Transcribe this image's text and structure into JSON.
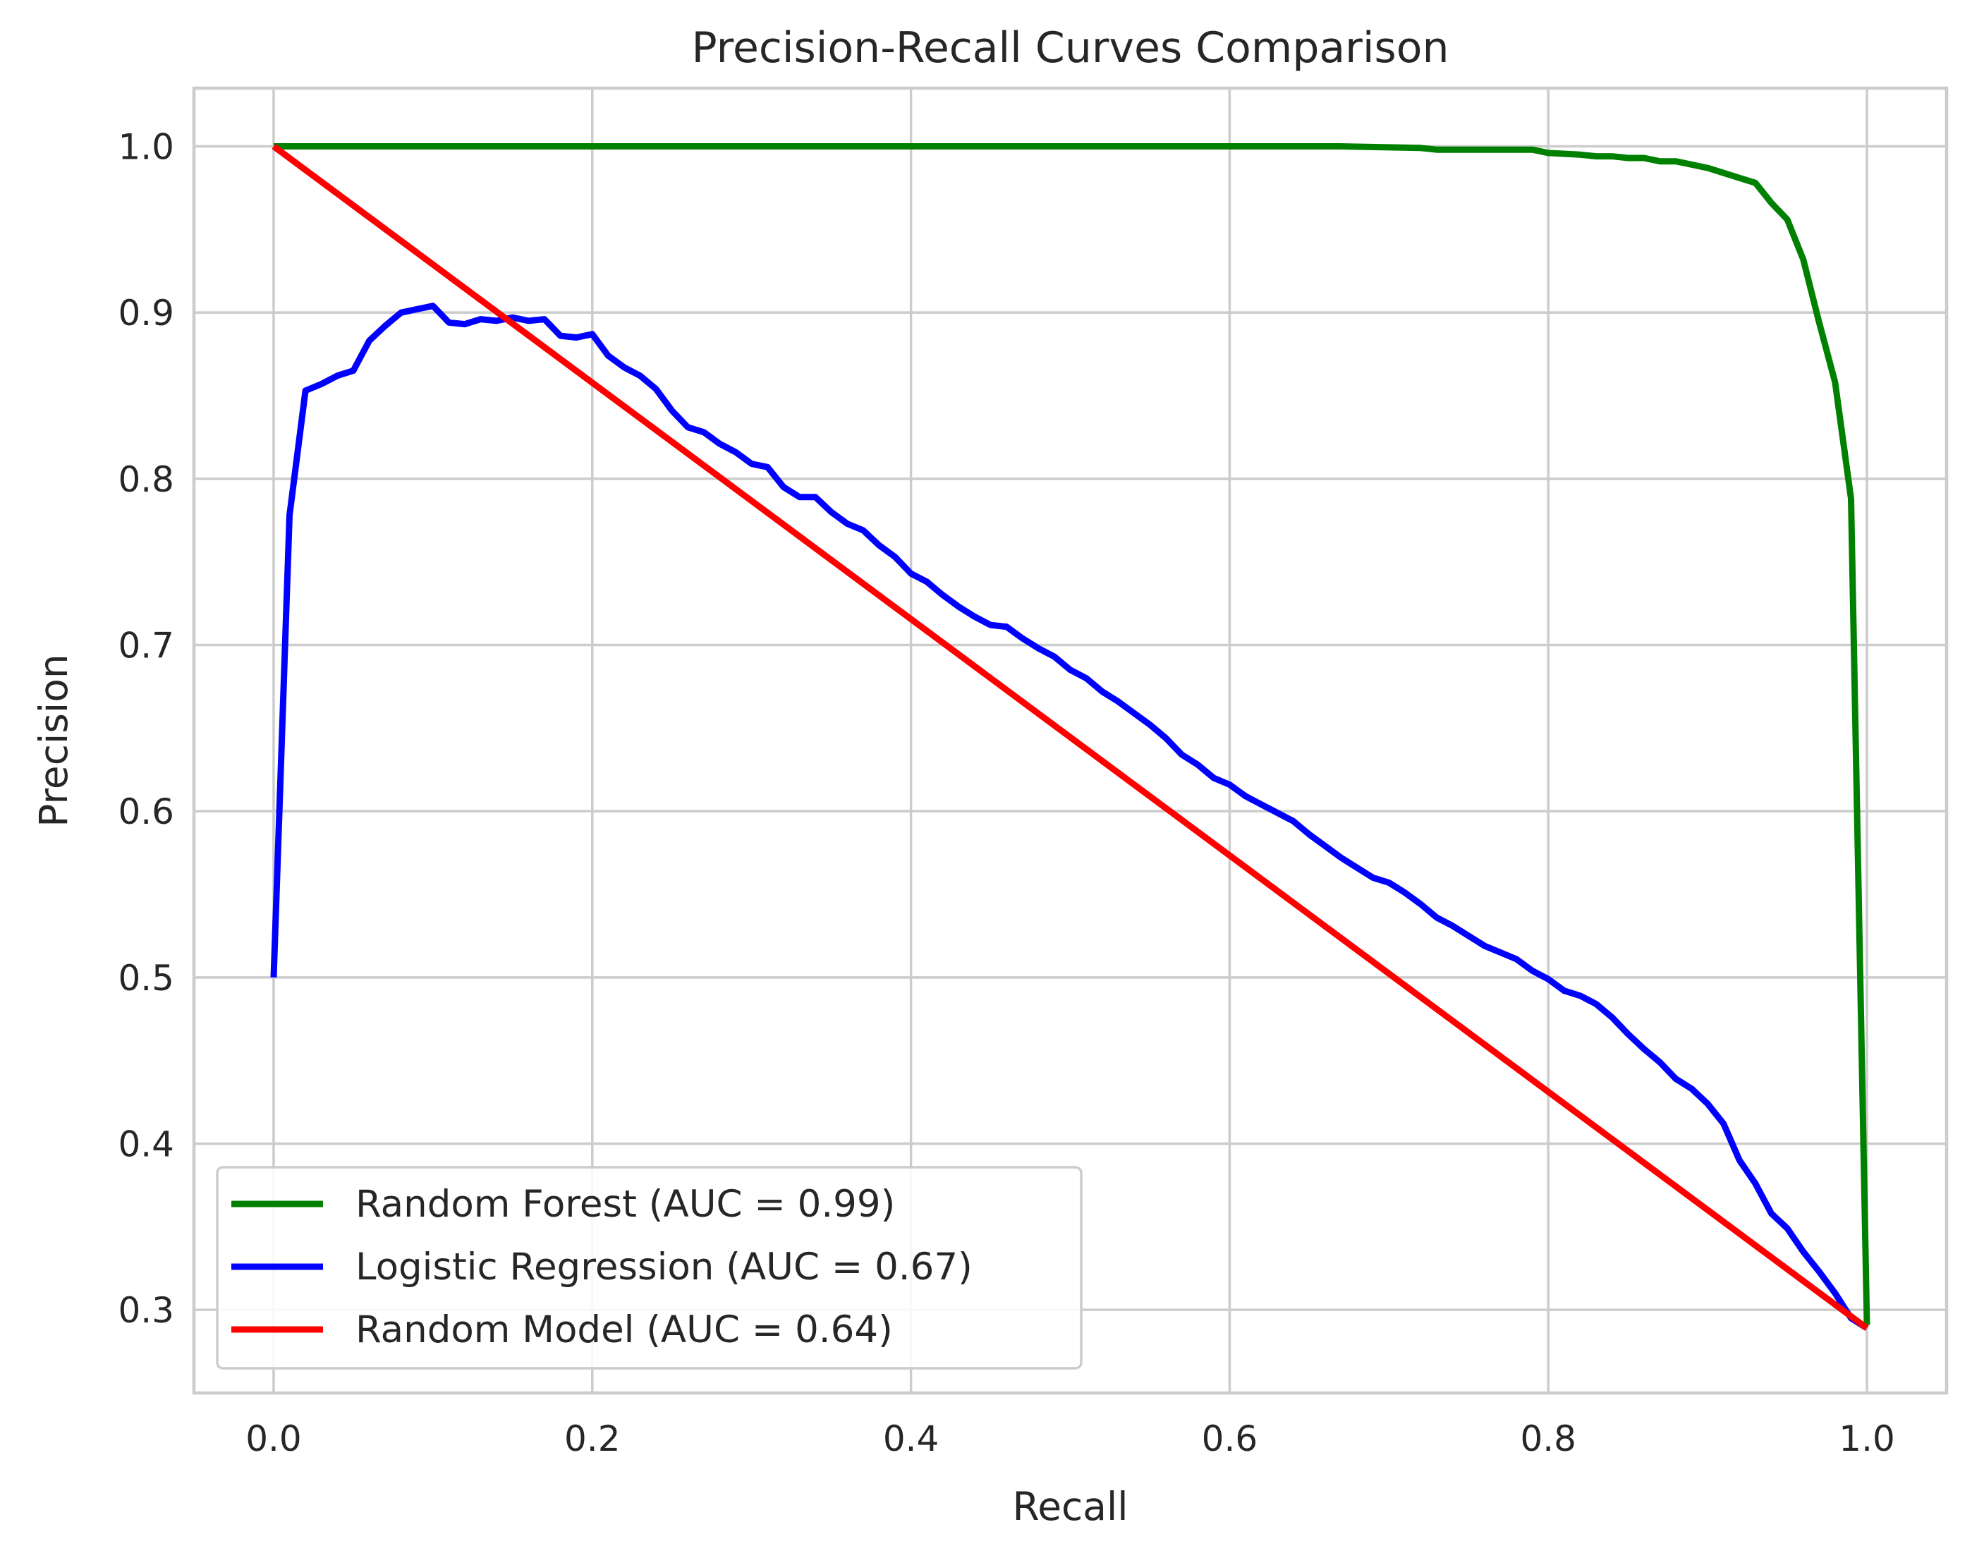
{
  "chart_data": {
    "type": "line",
    "title": "Precision-Recall Curves Comparison",
    "xlabel": "Recall",
    "ylabel": "Precision",
    "xlim": [
      -0.05,
      1.05
    ],
    "ylim": [
      0.25,
      1.035
    ],
    "xticks": [
      0.0,
      0.2,
      0.4,
      0.6,
      0.8,
      1.0
    ],
    "xtick_labels": [
      "0.0",
      "0.2",
      "0.4",
      "0.6",
      "0.8",
      "1.0"
    ],
    "yticks": [
      0.3,
      0.4,
      0.5,
      0.6,
      0.7,
      0.8,
      0.9,
      1.0
    ],
    "ytick_labels": [
      "0.3",
      "0.4",
      "0.5",
      "0.6",
      "0.7",
      "0.8",
      "0.9",
      "1.0"
    ],
    "grid": true,
    "legend_position": "lower-left",
    "series": [
      {
        "name": "Random Forest (AUC = 0.99)",
        "color": "#008000",
        "x": [
          0.0,
          0.1,
          0.2,
          0.3,
          0.4,
          0.5,
          0.6,
          0.67,
          0.72,
          0.73,
          0.79,
          0.8,
          0.82,
          0.83,
          0.84,
          0.85,
          0.86,
          0.87,
          0.88,
          0.89,
          0.9,
          0.91,
          0.92,
          0.93,
          0.94,
          0.95,
          0.96,
          0.97,
          0.98,
          0.99,
          1.0
        ],
        "y": [
          1.0,
          1.0,
          1.0,
          1.0,
          1.0,
          1.0,
          1.0,
          1.0,
          0.999,
          0.998,
          0.998,
          0.996,
          0.995,
          0.994,
          0.994,
          0.993,
          0.993,
          0.991,
          0.991,
          0.989,
          0.987,
          0.984,
          0.981,
          0.978,
          0.966,
          0.956,
          0.932,
          0.894,
          0.858,
          0.788,
          0.291
        ]
      },
      {
        "name": "Logistic Regression (AUC = 0.67)",
        "color": "#0000ff",
        "x": [
          0.0,
          0.01,
          0.02,
          0.03,
          0.04,
          0.05,
          0.06,
          0.07,
          0.08,
          0.09,
          0.1,
          0.11,
          0.12,
          0.13,
          0.14,
          0.15,
          0.16,
          0.17,
          0.18,
          0.19,
          0.2,
          0.21,
          0.22,
          0.23,
          0.24,
          0.25,
          0.26,
          0.27,
          0.28,
          0.29,
          0.3,
          0.31,
          0.32,
          0.33,
          0.34,
          0.35,
          0.36,
          0.37,
          0.38,
          0.39,
          0.4,
          0.41,
          0.42,
          0.43,
          0.44,
          0.45,
          0.46,
          0.47,
          0.48,
          0.49,
          0.5,
          0.51,
          0.52,
          0.53,
          0.54,
          0.55,
          0.56,
          0.57,
          0.58,
          0.59,
          0.6,
          0.61,
          0.62,
          0.63,
          0.64,
          0.65,
          0.66,
          0.67,
          0.68,
          0.69,
          0.7,
          0.71,
          0.72,
          0.73,
          0.74,
          0.75,
          0.76,
          0.77,
          0.78,
          0.79,
          0.8,
          0.81,
          0.82,
          0.83,
          0.84,
          0.85,
          0.86,
          0.87,
          0.88,
          0.89,
          0.9,
          0.91,
          0.92,
          0.93,
          0.94,
          0.95,
          0.96,
          0.97,
          0.98,
          0.99,
          1.0
        ],
        "y": [
          0.5,
          0.778,
          0.853,
          0.857,
          0.862,
          0.865,
          0.883,
          0.892,
          0.9,
          0.902,
          0.904,
          0.894,
          0.893,
          0.896,
          0.895,
          0.897,
          0.895,
          0.896,
          0.886,
          0.885,
          0.887,
          0.874,
          0.867,
          0.862,
          0.854,
          0.841,
          0.831,
          0.828,
          0.821,
          0.816,
          0.809,
          0.807,
          0.795,
          0.789,
          0.789,
          0.78,
          0.773,
          0.769,
          0.76,
          0.753,
          0.743,
          0.738,
          0.73,
          0.723,
          0.717,
          0.712,
          0.711,
          0.704,
          0.698,
          0.693,
          0.685,
          0.68,
          0.672,
          0.666,
          0.659,
          0.652,
          0.644,
          0.634,
          0.628,
          0.62,
          0.616,
          0.609,
          0.604,
          0.599,
          0.594,
          0.586,
          0.579,
          0.572,
          0.566,
          0.56,
          0.557,
          0.551,
          0.544,
          0.536,
          0.531,
          0.525,
          0.519,
          0.515,
          0.511,
          0.504,
          0.499,
          0.492,
          0.489,
          0.484,
          0.476,
          0.466,
          0.457,
          0.449,
          0.439,
          0.433,
          0.424,
          0.412,
          0.39,
          0.376,
          0.358,
          0.349,
          0.335,
          0.323,
          0.31,
          0.295,
          0.289
        ]
      },
      {
        "name": "Random Model (AUC = 0.64)",
        "color": "#ff0000",
        "x": [
          0.0,
          1.0
        ],
        "y": [
          1.0,
          0.289
        ]
      }
    ]
  }
}
